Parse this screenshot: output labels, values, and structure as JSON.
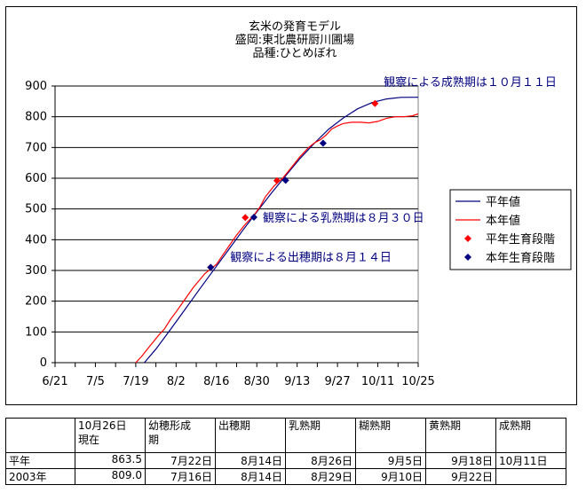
{
  "chart_data": {
    "type": "line",
    "title": [
      "玄米の発育モデル",
      "盛岡:東北農研厨川圃場",
      "品種:ひとめぼれ"
    ],
    "x_tick_labels": [
      "6/21",
      "7/5",
      "7/19",
      "8/2",
      "8/16",
      "8/30",
      "9/13",
      "9/27",
      "10/11",
      "10/25"
    ],
    "x_tick_days": [
      0,
      14,
      28,
      42,
      56,
      70,
      84,
      98,
      112,
      126
    ],
    "xlim": [
      0,
      126
    ],
    "ylim": [
      0,
      900
    ],
    "y_ticks": [
      0,
      100,
      200,
      300,
      400,
      500,
      600,
      700,
      800,
      900
    ],
    "grid": "horizontal",
    "legend_position": "right",
    "series": [
      {
        "name": "平年値",
        "kind": "line",
        "color": "#000080",
        "x": [
          31,
          35,
          40,
          45,
          50,
          55,
          60,
          65,
          70,
          75,
          80,
          85,
          90,
          95,
          100,
          105,
          110,
          115,
          120,
          125,
          126
        ],
        "y": [
          0,
          44,
          107,
          172,
          237,
          301,
          365,
          429,
          490,
          551,
          608,
          664,
          714,
          760,
          796,
          826,
          846,
          858,
          863,
          863.5,
          863.5
        ]
      },
      {
        "name": "本年値",
        "kind": "line",
        "color": "#ff0000",
        "x": [
          28,
          30,
          33,
          36,
          38,
          40,
          42,
          45,
          48,
          52,
          56,
          60,
          63,
          66,
          69,
          71,
          73,
          76,
          79,
          82,
          85,
          88,
          90,
          92,
          94,
          96,
          98,
          100,
          103,
          106,
          109,
          112,
          115,
          118,
          121,
          124,
          126
        ],
        "y": [
          0,
          20,
          55,
          90,
          110,
          140,
          165,
          205,
          245,
          290,
          320,
          375,
          415,
          450,
          480,
          505,
          540,
          575,
          600,
          635,
          670,
          700,
          715,
          725,
          740,
          760,
          770,
          778,
          782,
          782,
          780,
          785,
          795,
          800,
          800,
          803,
          809
        ]
      },
      {
        "name": "平年生育段階",
        "kind": "marker",
        "color": "#ff0000",
        "x": [
          54,
          66,
          77,
          111
        ],
        "y": [
          310,
          472,
          592,
          843
        ]
      },
      {
        "name": "本年生育段階",
        "kind": "marker",
        "color": "#000080",
        "x": [
          54,
          69,
          80,
          93
        ],
        "y": [
          310,
          473,
          593,
          714
        ]
      }
    ],
    "annotations": [
      {
        "text": "観察による成熟期は１０月１１日",
        "x": 111,
        "y": 843
      },
      {
        "text": "観察による乳熟期は８月３０日",
        "x": 69,
        "y": 473
      },
      {
        "text": "観察による出穂期は８月１４日",
        "x": 54,
        "y": 310
      }
    ]
  },
  "table": {
    "header": [
      "",
      "10月26日\n現在",
      "幼穂形成\n期",
      "出穂期",
      "乳熟期",
      "糊熟期",
      "黄熟期",
      "成熟期"
    ],
    "rows": [
      [
        "平年",
        "863.5",
        "7月22日",
        "8月14日",
        "8月26日",
        "9月5日",
        "9月18日",
        "10月11日"
      ],
      [
        "2003年",
        "809.0",
        "7月16日",
        "8月14日",
        "8月29日",
        "9月10日",
        "9月22日",
        ""
      ]
    ]
  }
}
